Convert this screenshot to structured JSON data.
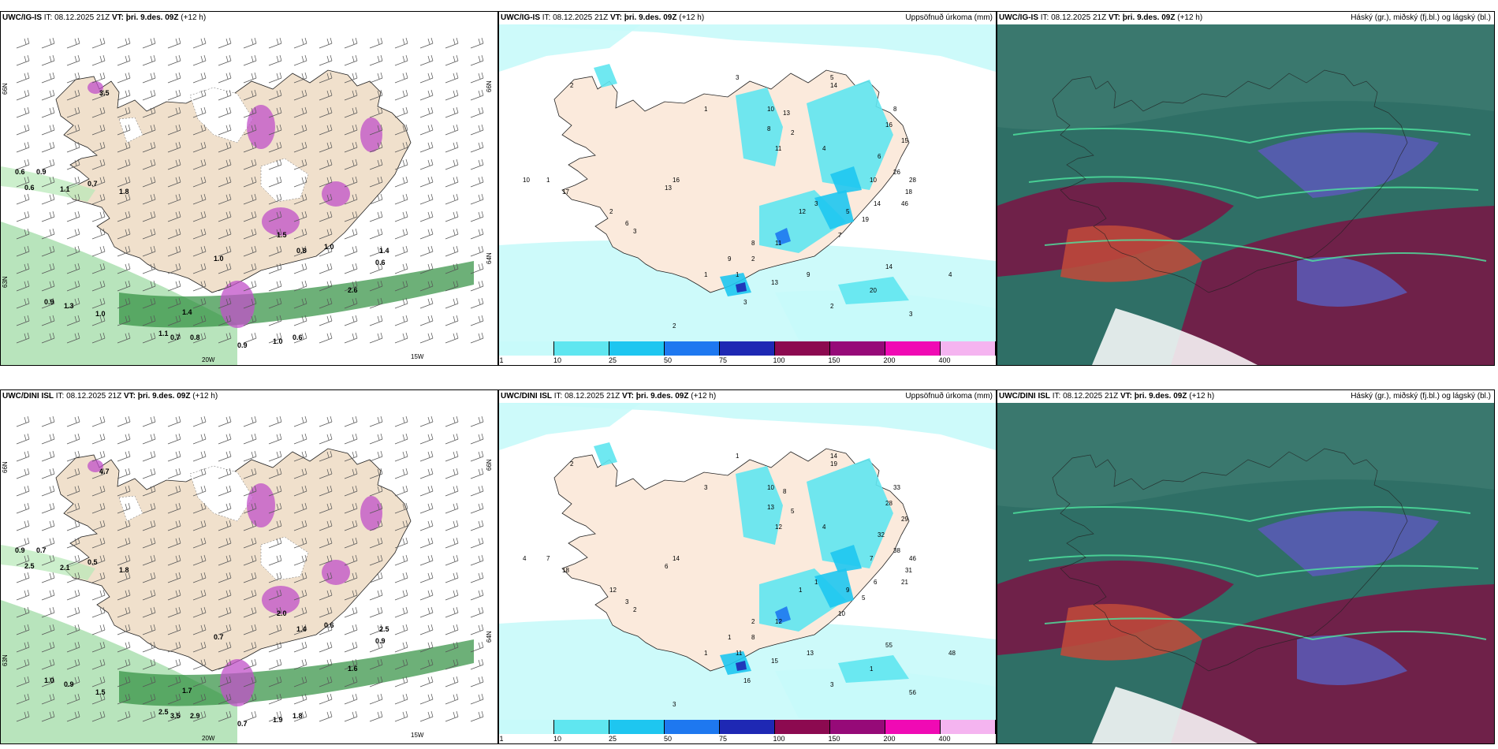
{
  "top": {
    "wind": {
      "model": "UWC/IG-IS",
      "it_label": "IT:",
      "it": "08.12.2025 21Z",
      "vt_label": "VT:",
      "vt": "þri. 9.des. 09Z",
      "lead": "(+12 h)"
    },
    "precip": {
      "model": "UWC/IG-IS",
      "it_label": "IT:",
      "it": "08.12.2025 21Z",
      "vt_label": "VT:",
      "vt": "þri. 9.des. 09Z",
      "lead": "(+12 h)",
      "title": "Uppsöfnuð úrkoma (mm)"
    },
    "cloud": {
      "model": "UWC/IG-IS",
      "it_label": "IT:",
      "it": "08.12.2025 21Z",
      "vt_label": "VT:",
      "vt": "þri. 9.des. 09Z",
      "lead": "(+12 h)",
      "title": "Háský (gr.), miðský (fj.bl.) og lágský (bl.)"
    }
  },
  "bottom": {
    "wind": {
      "model": "UWC/DINI ISL",
      "it_label": "IT:",
      "it": "08.12.2025 21Z",
      "vt_label": "VT:",
      "vt": "þri. 9.des. 09Z",
      "lead": "(+12 h)"
    },
    "precip": {
      "model": "UWC/DINI ISL",
      "it_label": "IT:",
      "it": "08.12.2025 21Z",
      "vt_label": "VT:",
      "vt": "þri. 9.des. 09Z",
      "lead": "(+12 h)",
      "title": "Uppsöfnuð úrkoma (mm)"
    },
    "cloud": {
      "model": "UWC/DINI ISL",
      "it_label": "IT:",
      "it": "08.12.2025 21Z",
      "vt_label": "VT:",
      "vt": "þri. 9.des. 09Z",
      "lead": "(+12 h)",
      "title": "Háský (gr.), miðský (fj.bl.) og lágský (bl.)"
    }
  },
  "axis_labels": {
    "lat66": "66N",
    "lat64": "64N",
    "lat63": "63N",
    "lon20": "20W",
    "lon15": "15W"
  },
  "colorbar": {
    "ticks": [
      "1",
      "10",
      "25",
      "50",
      "75",
      "100",
      "150",
      "200",
      "400"
    ],
    "colors": [
      "#c8fafa",
      "#5fe6f0",
      "#1ec6f0",
      "#1e78f0",
      "#1e28b4",
      "#8c0a50",
      "#960a78",
      "#f00ab4",
      "#f5b4f0"
    ]
  },
  "top_precip_labels": [
    "2",
    "3",
    "1",
    "10",
    "13",
    "8",
    "11",
    "2",
    "4",
    "5",
    "14",
    "8",
    "16",
    "15",
    "6",
    "26",
    "28",
    "18",
    "46",
    "10",
    "14",
    "19",
    "5",
    "7",
    "11",
    "2",
    "1",
    "3",
    "13",
    "9",
    "2",
    "20",
    "14",
    "3",
    "4",
    "2",
    "6",
    "3",
    "1",
    "10",
    "17",
    "16",
    "13",
    "12",
    "3",
    "9",
    "1",
    "8",
    "2"
  ],
  "bottom_precip_labels": [
    "2",
    "1",
    "3",
    "10",
    "8",
    "13",
    "12",
    "5",
    "4",
    "14",
    "19",
    "33",
    "28",
    "29",
    "32",
    "38",
    "46",
    "31",
    "21",
    "7",
    "6",
    "5",
    "9",
    "10",
    "12",
    "8",
    "11",
    "16",
    "15",
    "13",
    "3",
    "1",
    "55",
    "56",
    "48",
    "12",
    "3",
    "2",
    "7",
    "4",
    "18",
    "14",
    "6",
    "1",
    "1",
    "1",
    "1",
    "2",
    "3"
  ],
  "top_wind_labels": [
    "0.6",
    "0.9",
    "0.6",
    "1.1",
    "0.7",
    "1.8",
    "1.5",
    "0.8",
    "1.0",
    "1.4",
    "0.6",
    "1.0",
    "0.9",
    "1.3",
    "1.0",
    "1.1",
    "0.7",
    "0.8",
    "0.9",
    "1.0",
    "0.6",
    "1.4",
    "2.6",
    "3.5"
  ],
  "bottom_wind_labels": [
    "0.9",
    "0.7",
    "2.5",
    "2.1",
    "0.5",
    "1.8",
    "2.0",
    "1.4",
    "0.6",
    "2.5",
    "0.9",
    "0.7",
    "1.0",
    "0.9",
    "1.5",
    "2.5",
    "3.5",
    "2.9",
    "0.7",
    "1.9",
    "1.8",
    "1.7",
    "1.6",
    "4.7"
  ]
}
